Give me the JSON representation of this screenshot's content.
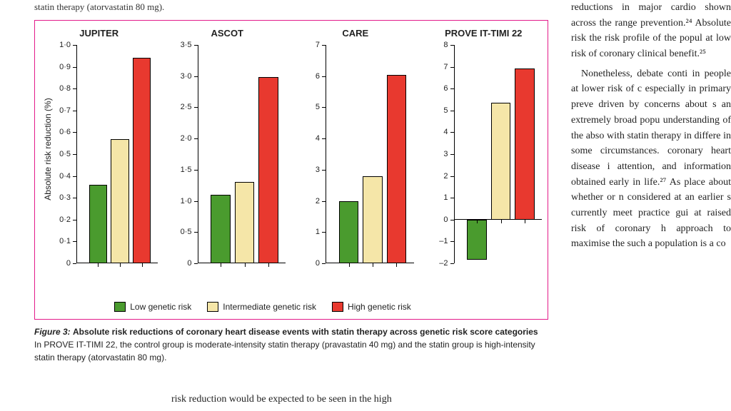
{
  "top_fragment": "statin therapy (atorvastatin 80 mg).",
  "figure": {
    "ylabel": "Absolute risk reduction (%)",
    "bar_colors": {
      "low": "#4a9b2e",
      "intermediate": "#f5e6a8",
      "high": "#e8392f"
    },
    "bar_border": "#000000",
    "panel_border": "#e31b8a",
    "background": "#ffffff",
    "axis_color": "#000000",
    "title_fontsize": 13,
    "tick_fontsize": 11,
    "label_fontsize": 12,
    "panels": [
      {
        "title": "JUPITER",
        "ylim": [
          0,
          1.0
        ],
        "yticks": [
          0,
          0.1,
          0.2,
          0.3,
          0.4,
          0.5,
          0.6,
          0.7,
          0.8,
          0.9,
          1.0
        ],
        "ytick_labels": [
          "0",
          "0·1",
          "0·2",
          "0·3",
          "0·4",
          "0·5",
          "0·6",
          "0·7",
          "0·8",
          "0·9",
          "1·0"
        ],
        "values": [
          0.36,
          0.57,
          0.94
        ]
      },
      {
        "title": "ASCOT",
        "ylim": [
          0,
          3.5
        ],
        "yticks": [
          0,
          0.5,
          1.0,
          1.5,
          2.0,
          2.5,
          3.0,
          3.5
        ],
        "ytick_labels": [
          "0",
          "0·5",
          "1·0",
          "1·5",
          "2·0",
          "2·5",
          "3·0",
          "3·5"
        ],
        "values": [
          1.1,
          1.3,
          2.98
        ]
      },
      {
        "title": "CARE",
        "ylim": [
          0,
          7
        ],
        "yticks": [
          0,
          1,
          2,
          3,
          4,
          5,
          6,
          7
        ],
        "ytick_labels": [
          "0",
          "1",
          "2",
          "3",
          "4",
          "5",
          "6",
          "7"
        ],
        "values": [
          1.98,
          2.78,
          6.05
        ]
      },
      {
        "title": "PROVE IT-TIMI 22",
        "ylim": [
          -2,
          8
        ],
        "yticks": [
          -2,
          -1,
          0,
          1,
          2,
          3,
          4,
          5,
          6,
          7,
          8
        ],
        "ytick_labels": [
          "–2",
          "–1",
          "0",
          "1",
          "2",
          "3",
          "4",
          "5",
          "6",
          "7",
          "8"
        ],
        "values": [
          -1.85,
          5.35,
          6.92
        ]
      }
    ],
    "legend": [
      {
        "label": "Low genetic risk",
        "key": "low"
      },
      {
        "label": "Intermediate genetic risk",
        "key": "intermediate"
      },
      {
        "label": "High genetic risk",
        "key": "high"
      }
    ]
  },
  "caption": {
    "lead": "Figure 3:",
    "title": "Absolute risk reductions of coronary heart disease events with statin therapy across genetic risk score categories",
    "body": "In PROVE IT-TIMI 22, the control group is moderate-intensity statin therapy (pravastatin 40 mg) and the statin group is high-intensity statin therapy (atorvastatin 80 mg)."
  },
  "right_col": {
    "p1": "reductions in major cardio shown across the range prevention.²⁴ Absolute risk the risk profile of the popul at low risk of coronary clinical benefit.²⁵",
    "p2": "Nonetheless, debate conti in people at lower risk of c especially in primary preve driven by concerns about s an extremely broad popu understanding of the abso with statin therapy in differe in some circumstances. coronary heart disease i attention, and information obtained early in life.²⁷ As place about whether or n considered at an earlier s currently meet practice gui at raised risk of coronary h approach to maximise the such a population is a co"
  },
  "bottom_fragment": "risk reduction would be expected to be seen in the high"
}
